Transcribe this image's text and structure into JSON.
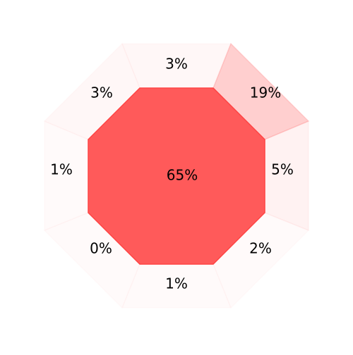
{
  "chart_data": {
    "type": "octagon-proportion",
    "center": {
      "label": "65%",
      "value": 65
    },
    "segments": [
      {
        "position": "top",
        "label": "3%",
        "value": 3
      },
      {
        "position": "top-right",
        "label": "19%",
        "value": 19
      },
      {
        "position": "right",
        "label": "5%",
        "value": 5
      },
      {
        "position": "bottom-right",
        "label": "2%",
        "value": 2
      },
      {
        "position": "bottom",
        "label": "1%",
        "value": 1
      },
      {
        "position": "bottom-left",
        "label": "0%",
        "value": 0
      },
      {
        "position": "left",
        "label": "1%",
        "value": 1
      },
      {
        "position": "top-left",
        "label": "3%",
        "value": 3
      }
    ],
    "color": "#ff5a5a",
    "stroke_color": "#ff4444"
  }
}
